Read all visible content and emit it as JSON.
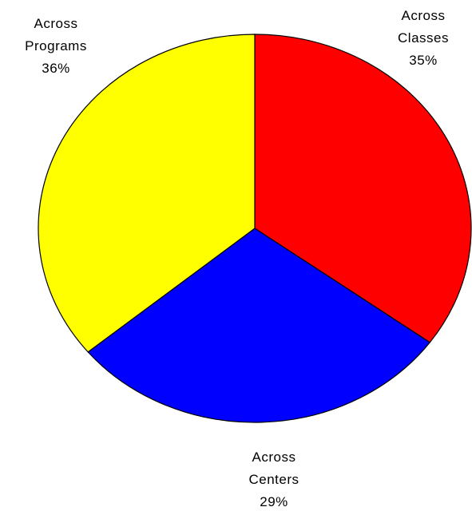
{
  "chart_data": {
    "type": "pie",
    "categories": [
      "Across Classes",
      "Across Centers",
      "Across Programs"
    ],
    "values": [
      35,
      29,
      36
    ],
    "value_labels": [
      "35%",
      "29%",
      "36%"
    ],
    "colors": [
      "#ff0000",
      "#0000ff",
      "#ffff00"
    ]
  }
}
